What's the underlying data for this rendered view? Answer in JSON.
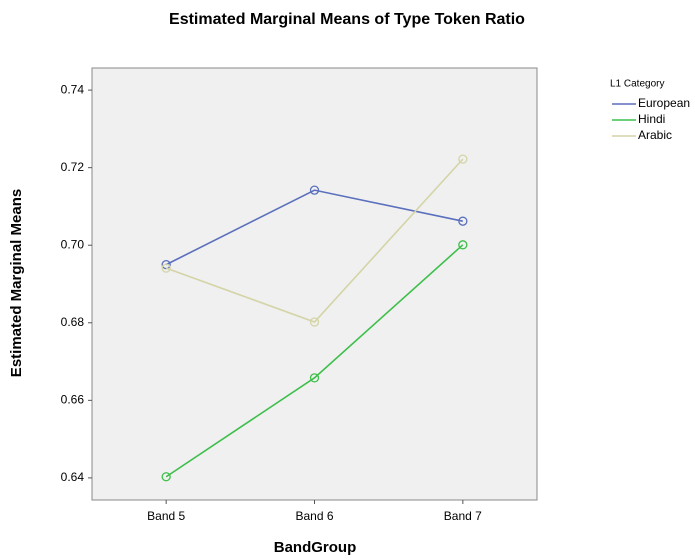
{
  "chart_data": {
    "type": "line",
    "title": "Estimated Marginal Means of Type Token Ratio",
    "x_label": "BandGroup",
    "y_label": "Estimated Marginal Means",
    "legend_title": "L1 Category",
    "legend_position": "right",
    "categories": [
      "Band 5",
      "Band 6",
      "Band 7"
    ],
    "series": [
      {
        "name": "European",
        "color": "#5a6fbd",
        "values": [
          0.695,
          0.7142,
          0.7062
        ]
      },
      {
        "name": "Hindi",
        "color": "#3dbf4a",
        "values": [
          0.6403,
          0.6658,
          0.7001
        ]
      },
      {
        "name": "Arabic",
        "color": "#d4d4a6",
        "values": [
          0.6941,
          0.6802,
          0.7222
        ]
      }
    ],
    "ylim": [
      0.6343,
      0.7457
    ],
    "yticks": [
      0.64,
      0.66,
      0.68,
      {
        "value": 0.7,
        "label": "0.70"
      },
      0.72,
      0.74
    ],
    "grid": false
  }
}
